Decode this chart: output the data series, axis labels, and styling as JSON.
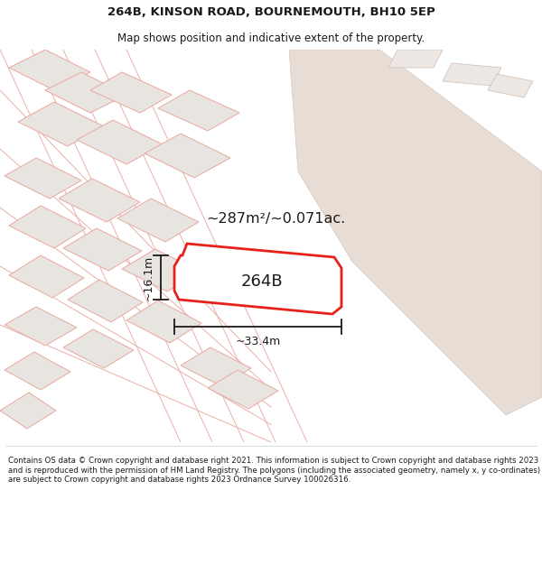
{
  "title": "264B, KINSON ROAD, BOURNEMOUTH, BH10 5EP",
  "subtitle": "Map shows position and indicative extent of the property.",
  "footer": "Contains OS data © Crown copyright and database right 2021. This information is subject to Crown copyright and database rights 2023 and is reproduced with the permission of HM Land Registry. The polygons (including the associated geometry, namely x, y co-ordinates) are subject to Crown copyright and database rights 2023 Ordnance Survey 100026316.",
  "area_text": "~287m²/~0.071ac.",
  "label": "264B",
  "dim_width": "~33.4m",
  "dim_height": "~16.1m",
  "map_bg": "#ffffff",
  "road_fill": "#e8ddd5",
  "road_stroke": "#d4c8be",
  "bldg_fill": "#e8e4e0",
  "bldg_stroke": "#e8a8a0",
  "highlight_fill": "#ffffff",
  "highlight_stroke": "#e8201a",
  "outline_stroke": "#c8b8b0",
  "white_bg": "#ffffff",
  "title_color": "#1a1a1a",
  "footer_color": "#1a1a1a"
}
